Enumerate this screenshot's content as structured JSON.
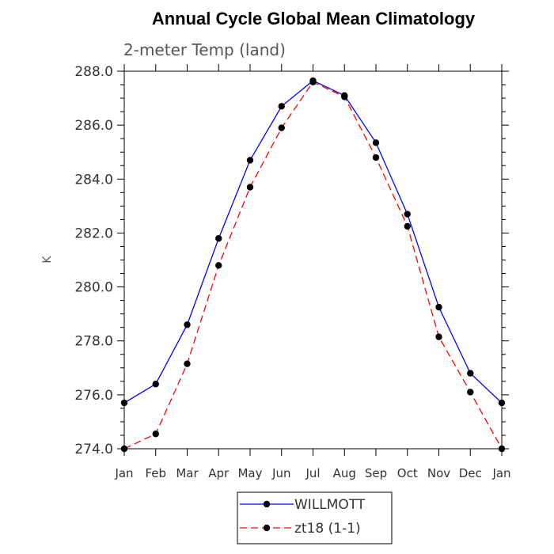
{
  "chart_data": {
    "type": "line",
    "title": "Annual Cycle Global Mean Climatology",
    "subtitle": "2-meter Temp (land)",
    "xlabel": "",
    "ylabel": "K",
    "categories": [
      "Jan",
      "Feb",
      "Mar",
      "Apr",
      "May",
      "Jun",
      "Jul",
      "Aug",
      "Sep",
      "Oct",
      "Nov",
      "Dec",
      "Jan"
    ],
    "ylim": [
      274.0,
      288.0
    ],
    "yticks": [
      "274.0",
      "276.0",
      "278.0",
      "280.0",
      "282.0",
      "284.0",
      "286.0",
      "288.0"
    ],
    "grid": false,
    "legend_position": "bottom-center",
    "series": [
      {
        "name": "WILLMOTT",
        "color": "#0000ff",
        "line_style": "solid",
        "marker": "circle",
        "values": [
          275.7,
          276.4,
          278.6,
          281.8,
          284.7,
          286.7,
          287.65,
          287.1,
          285.35,
          282.7,
          279.25,
          276.8,
          275.7
        ]
      },
      {
        "name": "zt18 (1-1)",
        "color": "#ff0000",
        "line_style": "dashed",
        "marker": "circle",
        "values": [
          274.0,
          274.55,
          277.15,
          280.8,
          283.7,
          285.9,
          287.6,
          287.05,
          284.8,
          282.25,
          278.15,
          276.1,
          274.0
        ]
      }
    ]
  }
}
